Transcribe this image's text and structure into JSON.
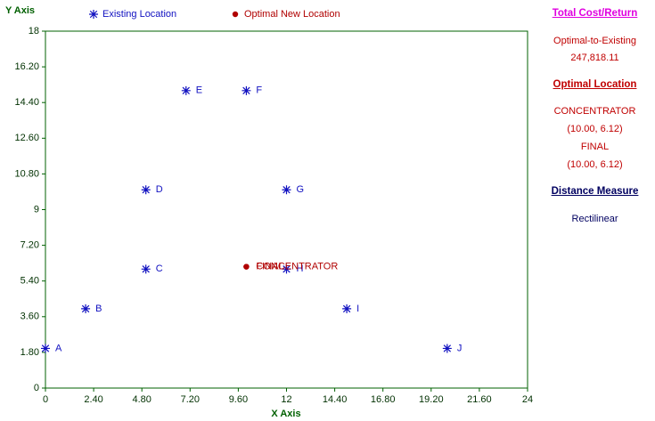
{
  "chart_data": {
    "type": "scatter",
    "xlabel": "X Axis",
    "ylabel": "Y Axis",
    "xlim": [
      0,
      24
    ],
    "ylim": [
      0,
      18
    ],
    "xticks": [
      0,
      {
        "value": 2.4,
        "label": "2.40"
      },
      {
        "value": 4.8,
        "label": "4.80"
      },
      {
        "value": 7.2,
        "label": "7.20"
      },
      {
        "value": 9.6,
        "label": "9.60"
      },
      12,
      {
        "value": 14.4,
        "label": "14.40"
      },
      {
        "value": 16.8,
        "label": "16.80"
      },
      {
        "value": 19.2,
        "label": "19.20"
      },
      {
        "value": 21.6,
        "label": "21.60"
      },
      24
    ],
    "yticks": [
      0,
      {
        "value": 1.8,
        "label": "1.80"
      },
      {
        "value": 3.6,
        "label": "3.60"
      },
      {
        "value": 5.4,
        "label": "5.40"
      },
      {
        "value": 7.2,
        "label": "7.20"
      },
      9,
      {
        "value": 10.8,
        "label": "10.80"
      },
      {
        "value": 12.6,
        "label": "12.60"
      },
      {
        "value": 14.4,
        "label": "14.40"
      },
      {
        "value": 16.2,
        "label": "16.20"
      },
      18
    ],
    "series": [
      {
        "name": "Existing Location",
        "color": "#1010c0",
        "marker": "asterisk",
        "labels": [
          "A",
          "B",
          "C",
          "D",
          "E",
          "F",
          "G",
          "H",
          "I",
          "J"
        ],
        "x": [
          0,
          2,
          5,
          5,
          7,
          10,
          12,
          12,
          15,
          20
        ],
        "values": [
          2,
          4,
          6,
          10,
          15,
          15,
          10,
          6,
          4,
          2
        ]
      },
      {
        "name": "Optimal New Location",
        "color": "#b00000",
        "marker": "dot",
        "labels": [
          "CONCENTRATOR",
          "FINAL"
        ],
        "x": [
          10,
          10
        ],
        "values": [
          6.12,
          6.12
        ]
      }
    ]
  },
  "side_panel": {
    "cost_title": "Total Cost/Return",
    "cost_label": "Optimal-to-Existing",
    "cost_value": "247,818.11",
    "location_title": "Optimal Location",
    "locations": [
      {
        "name": "CONCENTRATOR",
        "coords": "(10.00, 6.12)"
      },
      {
        "name": "FINAL",
        "coords": "(10.00, 6.12)"
      }
    ],
    "distance_title": "Distance Measure",
    "distance_value": "Rectilinear"
  }
}
